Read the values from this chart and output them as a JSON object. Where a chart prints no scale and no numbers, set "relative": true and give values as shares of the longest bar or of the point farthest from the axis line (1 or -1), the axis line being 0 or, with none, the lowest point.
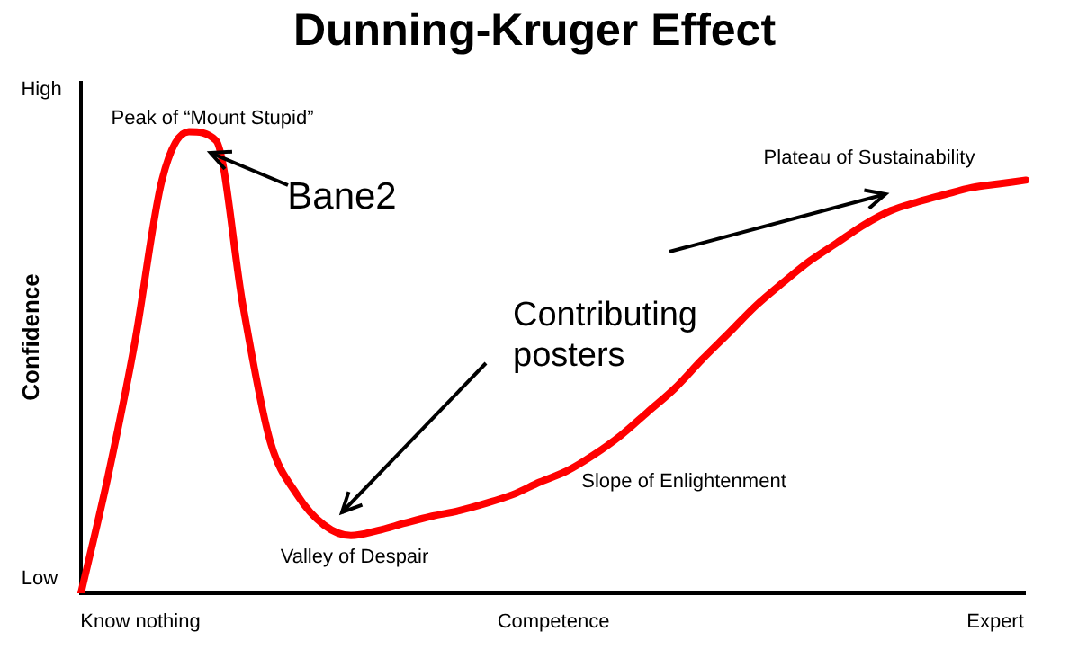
{
  "chart_data": {
    "type": "line",
    "title": "Dunning-Kruger Effect",
    "xlabel": "Competence",
    "ylabel": "Confidence",
    "relative": true,
    "categories": [
      null,
      null,
      null,
      null,
      null,
      null,
      null,
      null,
      null,
      null,
      null,
      null,
      null,
      null,
      null,
      null,
      null,
      null,
      null,
      null,
      null,
      null,
      null,
      null,
      null,
      null,
      null,
      null,
      null,
      null,
      null,
      null,
      null,
      null,
      null,
      null
    ],
    "series": [
      {
        "color": "#ff0000",
        "values": [
          0,
          0.253,
          0.545,
          0.895,
          1,
          0.981,
          0.623,
          0.331,
          0.214,
          0.148,
          0.125,
          0.136,
          0.152,
          0.167,
          0.179,
          0.195,
          0.214,
          0.241,
          0.265,
          0.3,
          0.342,
          0.393,
          0.444,
          0.506,
          0.564,
          0.623,
          0.673,
          0.72,
          0.759,
          0.798,
          0.829,
          0.848,
          0.864,
          0.879,
          0.887,
          0.895
        ]
      }
    ],
    "grid": false,
    "legend": false,
    "marker": "none",
    "line_style": "solid",
    "annotations": [
      "Peak of “Mount Stupid”",
      "Valley of Despair",
      "Slope of Enlightenment",
      "Plateau of Sustainability",
      "Bane2",
      "Contributing posters",
      "High",
      "Low",
      "Know nothing",
      "Expert"
    ]
  }
}
